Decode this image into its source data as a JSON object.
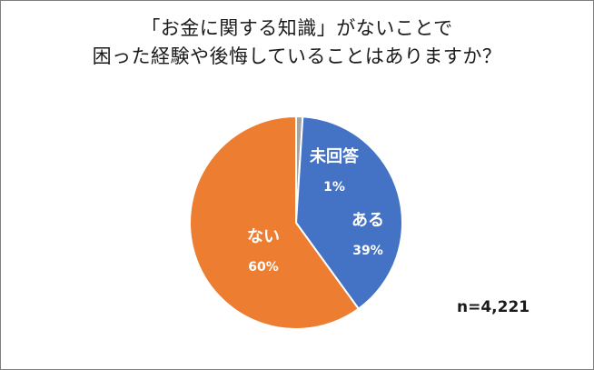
{
  "title": {
    "line1": "「お金に関する知識」がないことで",
    "line2": "困った経験や後悔していることはありますか？"
  },
  "note": "n=4,221",
  "chart_data": {
    "type": "pie",
    "slices": [
      {
        "label": "未回答",
        "value": 1,
        "display": "1%",
        "color": "#a5a5a5"
      },
      {
        "label": "ある",
        "value": 39,
        "display": "39%",
        "color": "#4472c4"
      },
      {
        "label": "ない",
        "value": 60,
        "display": "60%",
        "color": "#ed7d31"
      }
    ]
  }
}
